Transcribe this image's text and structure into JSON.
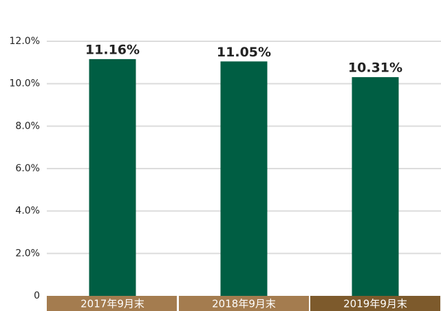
{
  "chart_data": {
    "type": "bar",
    "categories": [
      "2017年9月末",
      "2018年9月末",
      "2019年9月末"
    ],
    "values": [
      11.16,
      11.05,
      10.31
    ],
    "value_labels": [
      "11.16%",
      "11.05%",
      "10.31%"
    ],
    "color": "#005e43",
    "category_band_colors": [
      "#a47c4f",
      "#a47c4f",
      "#7d5a2c"
    ],
    "ylim": [
      0,
      12
    ],
    "yticks": [
      0,
      {
        "value": 2,
        "label": "2.0%"
      },
      {
        "value": 4,
        "label": "4.0%"
      },
      {
        "value": 6,
        "label": "6.0%"
      },
      {
        "value": 8,
        "label": "8.0%"
      },
      {
        "value": 10,
        "label": "10.0%"
      },
      {
        "value": 12,
        "label": "12.0%"
      }
    ],
    "grid": true
  }
}
